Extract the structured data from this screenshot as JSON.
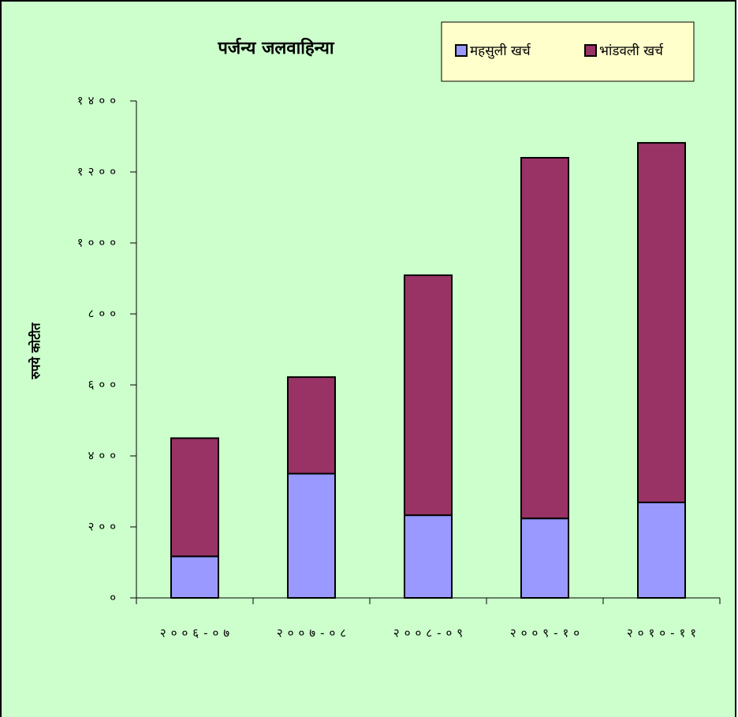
{
  "chart_data": {
    "type": "bar",
    "stacked": true,
    "title": "पर्जन्य जलवाहिन्या",
    "y_axis_label": "रुपये कोटीत",
    "categories": [
      "२००६-०७",
      "२००७-०८",
      "२००८-०९",
      "२००९-१०",
      "२०१०-११"
    ],
    "series": [
      {
        "name": "महसुली खर्च",
        "color": "#9999ff",
        "values": [
          117,
          350,
          233,
          224,
          269
        ]
      },
      {
        "name": "भांडवली खर्च",
        "color": "#993366",
        "values": [
          333,
          272,
          676,
          1016,
          1013
        ]
      }
    ],
    "ylim": [
      0,
      1400
    ],
    "yticks": [
      {
        "value": 0,
        "label": "०"
      },
      {
        "value": 200,
        "label": "२००"
      },
      {
        "value": 400,
        "label": "४००"
      },
      {
        "value": 600,
        "label": "६००"
      },
      {
        "value": 800,
        "label": "८००"
      },
      {
        "value": 1000,
        "label": "१०००"
      },
      {
        "value": 1200,
        "label": "१२००"
      },
      {
        "value": 1400,
        "label": "१४००"
      }
    ],
    "legend_position": "top-right"
  }
}
